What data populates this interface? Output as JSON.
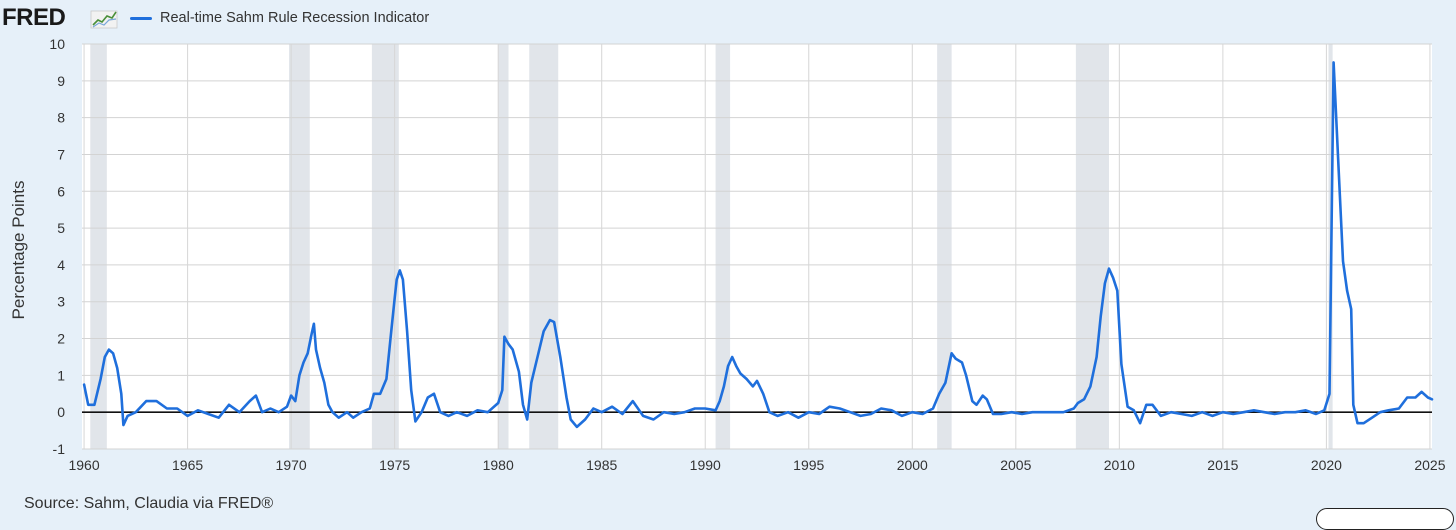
{
  "header": {
    "logo_text": "FRED",
    "logo_icon": "fred-chart-icon",
    "series_color": "#1f6fdc"
  },
  "footer": {
    "source": "Source: Sahm, Claudia via FRED®"
  },
  "chart_data": {
    "type": "line",
    "title": "",
    "xlabel": "",
    "ylabel": "Percentage Points",
    "xlim": [
      1959.9,
      2025.1
    ],
    "ylim": [
      -1,
      10
    ],
    "x_ticks": [
      1960,
      1965,
      1970,
      1975,
      1980,
      1985,
      1990,
      1995,
      2000,
      2005,
      2010,
      2015,
      2020,
      2025
    ],
    "y_ticks": [
      -1,
      0,
      1,
      2,
      3,
      4,
      5,
      6,
      7,
      8,
      9,
      10
    ],
    "grid": true,
    "legend_position": "top-left",
    "recession_shading": [
      [
        1960.3,
        1961.1
      ],
      [
        1969.9,
        1970.9
      ],
      [
        1973.9,
        1975.2
      ],
      [
        1980.0,
        1980.5
      ],
      [
        1981.5,
        1982.9
      ],
      [
        1990.5,
        1991.2
      ],
      [
        2001.2,
        2001.9
      ],
      [
        2007.9,
        2009.5
      ],
      [
        2020.1,
        2020.3
      ]
    ],
    "zero_line": true,
    "series": [
      {
        "name": "Real-time Sahm Rule Recession Indicator",
        "color": "#1f6fdc",
        "points": [
          [
            1960.0,
            0.75
          ],
          [
            1960.2,
            0.2
          ],
          [
            1960.5,
            0.2
          ],
          [
            1960.8,
            0.9
          ],
          [
            1961.0,
            1.5
          ],
          [
            1961.2,
            1.7
          ],
          [
            1961.4,
            1.6
          ],
          [
            1961.6,
            1.2
          ],
          [
            1961.8,
            0.5
          ],
          [
            1961.9,
            -0.35
          ],
          [
            1962.1,
            -0.1
          ],
          [
            1962.5,
            0.0
          ],
          [
            1963.0,
            0.3
          ],
          [
            1963.5,
            0.3
          ],
          [
            1964.0,
            0.1
          ],
          [
            1964.5,
            0.1
          ],
          [
            1965.0,
            -0.1
          ],
          [
            1965.5,
            0.05
          ],
          [
            1966.0,
            -0.05
          ],
          [
            1966.5,
            -0.15
          ],
          [
            1967.0,
            0.2
          ],
          [
            1967.5,
            0.0
          ],
          [
            1968.0,
            0.3
          ],
          [
            1968.3,
            0.45
          ],
          [
            1968.6,
            0.0
          ],
          [
            1969.0,
            0.1
          ],
          [
            1969.4,
            0.0
          ],
          [
            1969.8,
            0.15
          ],
          [
            1970.0,
            0.45
          ],
          [
            1970.2,
            0.3
          ],
          [
            1970.4,
            1.0
          ],
          [
            1970.6,
            1.35
          ],
          [
            1970.8,
            1.6
          ],
          [
            1971.0,
            2.15
          ],
          [
            1971.1,
            2.4
          ],
          [
            1971.2,
            1.7
          ],
          [
            1971.4,
            1.2
          ],
          [
            1971.6,
            0.8
          ],
          [
            1971.8,
            0.2
          ],
          [
            1972.0,
            0.0
          ],
          [
            1972.3,
            -0.15
          ],
          [
            1972.7,
            0.0
          ],
          [
            1973.0,
            -0.15
          ],
          [
            1973.4,
            0.0
          ],
          [
            1973.8,
            0.1
          ],
          [
            1974.0,
            0.5
          ],
          [
            1974.3,
            0.5
          ],
          [
            1974.6,
            0.9
          ],
          [
            1974.8,
            2.0
          ],
          [
            1975.0,
            3.1
          ],
          [
            1975.1,
            3.6
          ],
          [
            1975.25,
            3.85
          ],
          [
            1975.4,
            3.6
          ],
          [
            1975.6,
            2.2
          ],
          [
            1975.8,
            0.6
          ],
          [
            1976.0,
            -0.25
          ],
          [
            1976.3,
            0.0
          ],
          [
            1976.6,
            0.4
          ],
          [
            1976.9,
            0.5
          ],
          [
            1977.2,
            0.0
          ],
          [
            1977.6,
            -0.1
          ],
          [
            1978.0,
            0.0
          ],
          [
            1978.5,
            -0.1
          ],
          [
            1979.0,
            0.05
          ],
          [
            1979.5,
            0.0
          ],
          [
            1980.0,
            0.25
          ],
          [
            1980.2,
            0.6
          ],
          [
            1980.3,
            2.05
          ],
          [
            1980.5,
            1.85
          ],
          [
            1980.7,
            1.7
          ],
          [
            1981.0,
            1.1
          ],
          [
            1981.2,
            0.2
          ],
          [
            1981.4,
            -0.2
          ],
          [
            1981.6,
            0.8
          ],
          [
            1981.9,
            1.5
          ],
          [
            1982.2,
            2.2
          ],
          [
            1982.5,
            2.5
          ],
          [
            1982.7,
            2.45
          ],
          [
            1983.0,
            1.5
          ],
          [
            1983.3,
            0.4
          ],
          [
            1983.5,
            -0.2
          ],
          [
            1983.8,
            -0.4
          ],
          [
            1984.2,
            -0.2
          ],
          [
            1984.6,
            0.1
          ],
          [
            1985.0,
            0.0
          ],
          [
            1985.5,
            0.15
          ],
          [
            1986.0,
            -0.05
          ],
          [
            1986.5,
            0.3
          ],
          [
            1987.0,
            -0.1
          ],
          [
            1987.5,
            -0.2
          ],
          [
            1988.0,
            0.0
          ],
          [
            1988.5,
            -0.05
          ],
          [
            1989.0,
            0.0
          ],
          [
            1989.5,
            0.1
          ],
          [
            1990.0,
            0.1
          ],
          [
            1990.5,
            0.05
          ],
          [
            1990.7,
            0.3
          ],
          [
            1990.9,
            0.7
          ],
          [
            1991.1,
            1.25
          ],
          [
            1991.3,
            1.5
          ],
          [
            1991.5,
            1.25
          ],
          [
            1991.7,
            1.05
          ],
          [
            1992.0,
            0.9
          ],
          [
            1992.3,
            0.7
          ],
          [
            1992.5,
            0.85
          ],
          [
            1992.8,
            0.5
          ],
          [
            1993.1,
            0.0
          ],
          [
            1993.5,
            -0.1
          ],
          [
            1994.0,
            0.0
          ],
          [
            1994.5,
            -0.15
          ],
          [
            1995.0,
            0.0
          ],
          [
            1995.5,
            -0.05
          ],
          [
            1996.0,
            0.15
          ],
          [
            1996.5,
            0.1
          ],
          [
            1997.0,
            0.0
          ],
          [
            1997.5,
            -0.1
          ],
          [
            1998.0,
            -0.05
          ],
          [
            1998.5,
            0.1
          ],
          [
            1999.0,
            0.05
          ],
          [
            1999.5,
            -0.1
          ],
          [
            2000.0,
            0.0
          ],
          [
            2000.5,
            -0.05
          ],
          [
            2001.0,
            0.1
          ],
          [
            2001.3,
            0.5
          ],
          [
            2001.6,
            0.8
          ],
          [
            2001.9,
            1.6
          ],
          [
            2002.1,
            1.45
          ],
          [
            2002.4,
            1.35
          ],
          [
            2002.6,
            1.0
          ],
          [
            2002.9,
            0.3
          ],
          [
            2003.1,
            0.2
          ],
          [
            2003.4,
            0.45
          ],
          [
            2003.6,
            0.35
          ],
          [
            2003.9,
            -0.05
          ],
          [
            2004.3,
            -0.05
          ],
          [
            2004.8,
            0.0
          ],
          [
            2005.3,
            -0.05
          ],
          [
            2005.8,
            0.0
          ],
          [
            2006.3,
            0.0
          ],
          [
            2006.8,
            0.0
          ],
          [
            2007.3,
            0.0
          ],
          [
            2007.8,
            0.1
          ],
          [
            2008.0,
            0.25
          ],
          [
            2008.3,
            0.35
          ],
          [
            2008.6,
            0.7
          ],
          [
            2008.9,
            1.5
          ],
          [
            2009.1,
            2.6
          ],
          [
            2009.3,
            3.5
          ],
          [
            2009.5,
            3.9
          ],
          [
            2009.7,
            3.65
          ],
          [
            2009.9,
            3.3
          ],
          [
            2010.1,
            1.3
          ],
          [
            2010.4,
            0.15
          ],
          [
            2010.7,
            0.05
          ],
          [
            2011.0,
            -0.3
          ],
          [
            2011.3,
            0.2
          ],
          [
            2011.6,
            0.2
          ],
          [
            2012.0,
            -0.1
          ],
          [
            2012.5,
            0.0
          ],
          [
            2013.0,
            -0.05
          ],
          [
            2013.5,
            -0.1
          ],
          [
            2014.0,
            0.0
          ],
          [
            2014.5,
            -0.1
          ],
          [
            2015.0,
            0.0
          ],
          [
            2015.5,
            -0.05
          ],
          [
            2016.0,
            0.0
          ],
          [
            2016.5,
            0.05
          ],
          [
            2017.0,
            0.0
          ],
          [
            2017.5,
            -0.05
          ],
          [
            2018.0,
            0.0
          ],
          [
            2018.5,
            0.0
          ],
          [
            2019.0,
            0.05
          ],
          [
            2019.5,
            -0.05
          ],
          [
            2019.9,
            0.05
          ],
          [
            2020.15,
            0.5
          ],
          [
            2020.35,
            9.5
          ],
          [
            2020.6,
            6.5
          ],
          [
            2020.8,
            4.1
          ],
          [
            2021.0,
            3.3
          ],
          [
            2021.2,
            2.8
          ],
          [
            2021.3,
            0.2
          ],
          [
            2021.5,
            -0.3
          ],
          [
            2021.8,
            -0.3
          ],
          [
            2022.2,
            -0.15
          ],
          [
            2022.6,
            0.0
          ],
          [
            2023.0,
            0.05
          ],
          [
            2023.5,
            0.1
          ],
          [
            2023.9,
            0.4
          ],
          [
            2024.3,
            0.4
          ],
          [
            2024.6,
            0.55
          ],
          [
            2024.9,
            0.4
          ],
          [
            2025.1,
            0.35
          ]
        ]
      }
    ]
  }
}
